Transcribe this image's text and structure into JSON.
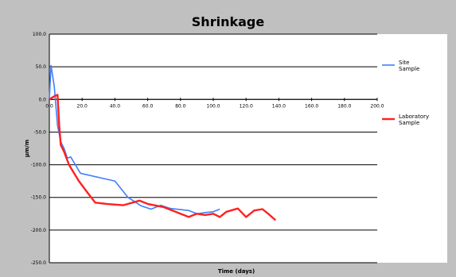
{
  "chart_data": {
    "type": "line",
    "title": "Shrinkage",
    "xlabel": "Time (days)",
    "ylabel": "µm/m",
    "xlim": [
      0,
      200
    ],
    "ylim": [
      -250,
      100
    ],
    "x_ticks": [
      "0.0",
      "20.0",
      "40.0",
      "60.0",
      "80.0",
      "100.0",
      "120.0",
      "140.0",
      "160.0",
      "180.0",
      "200.0"
    ],
    "y_ticks": [
      "100.0",
      "50.0",
      "0.0",
      "-50.0",
      "-100.0",
      "-150.0",
      "-200.0",
      "-250.0"
    ],
    "x_tick_values": [
      0,
      20,
      40,
      60,
      80,
      100,
      120,
      140,
      160,
      180,
      200
    ],
    "y_tick_values": [
      100,
      50,
      0,
      -50,
      -100,
      -150,
      -200,
      -250
    ],
    "grid": "horizontal",
    "legend_position": "right",
    "series": [
      {
        "name": "Site Sample",
        "color": "#3f7fff",
        "x": [
          0,
          1,
          3,
          5,
          7,
          9,
          11,
          13,
          19,
          40,
          48,
          56,
          62,
          68,
          74,
          85,
          90,
          96,
          100,
          104
        ],
        "y": [
          0,
          52,
          20,
          -40,
          -65,
          -75,
          -90,
          -88,
          -113,
          -125,
          -150,
          -163,
          -168,
          -162,
          -167,
          -170,
          -175,
          -173,
          -172,
          -168
        ]
      },
      {
        "name": "Laboratory Sample",
        "color": "#ff2020",
        "x": [
          0,
          3,
          5,
          6,
          7,
          9,
          12,
          18,
          24,
          28,
          35,
          45,
          55,
          60,
          70,
          80,
          85,
          90,
          95,
          100,
          104,
          108,
          115,
          120,
          125,
          130,
          134,
          138
        ],
        "y": [
          0,
          5,
          7,
          -40,
          -70,
          -80,
          -100,
          -125,
          -145,
          -158,
          -160,
          -162,
          -155,
          -160,
          -165,
          -175,
          -180,
          -175,
          -177,
          -175,
          -180,
          -172,
          -167,
          -180,
          -170,
          -168,
          -176,
          -185
        ]
      }
    ]
  }
}
